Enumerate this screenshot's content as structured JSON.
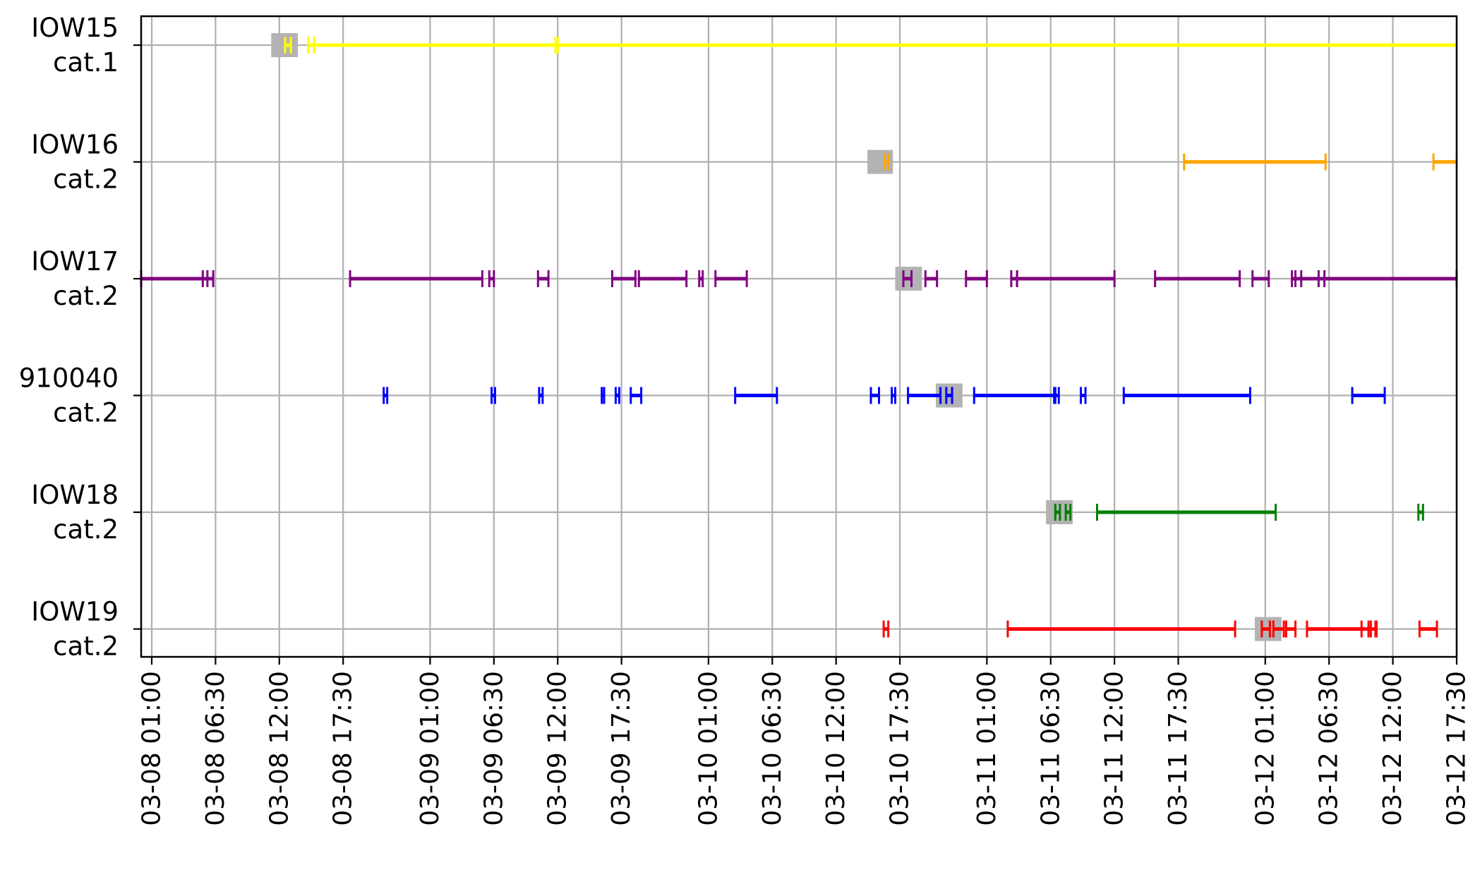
{
  "chart_data": {
    "type": "timeline",
    "title": "",
    "xlabel": "",
    "ylabel": "",
    "grid": true,
    "x_ticks": [
      "03-08 01:00",
      "03-08 06:30",
      "03-08 12:00",
      "03-08 17:30",
      "03-09 01:00",
      "03-09 06:30",
      "03-09 12:00",
      "03-09 17:30",
      "03-10 01:00",
      "03-10 06:30",
      "03-10 12:00",
      "03-10 17:30",
      "03-11 01:00",
      "03-11 06:30",
      "03-11 12:00",
      "03-11 17:30",
      "03-12 01:00",
      "03-12 06:30",
      "03-12 12:00",
      "03-12 17:30"
    ],
    "x_tick_hours": [
      1,
      6.5,
      12,
      17.5,
      25,
      30.5,
      36,
      41.5,
      49,
      54.5,
      60,
      65.5,
      73,
      78.5,
      84,
      89.5,
      97,
      102.5,
      108,
      113.5
    ],
    "xlim_hours": [
      0,
      113.5
    ],
    "rows": [
      {
        "name": "IOW15",
        "category": "cat.1",
        "color": "#ffff00",
        "segments": [
          [
            12.5,
            13.0
          ],
          [
            14.5,
            15.0
          ],
          [
            15.0,
            113.5
          ],
          [
            35.8,
            36.0
          ]
        ],
        "highlight": [
          11.3,
          13.6
        ]
      },
      {
        "name": "IOW16",
        "category": "cat.2",
        "color": "#ffa500",
        "segments": [
          [
            64.2,
            64.5
          ],
          [
            90.0,
            102.2
          ],
          [
            111.5,
            113.5
          ]
        ],
        "highlight": [
          62.7,
          64.9
        ]
      },
      {
        "name": "IOW17",
        "category": "cat.2",
        "color": "#800080",
        "segments": [
          [
            0.0,
            6.3
          ],
          [
            5.4,
            5.8
          ],
          [
            18.1,
            29.5
          ],
          [
            30.1,
            30.5
          ],
          [
            34.3,
            35.2
          ],
          [
            40.7,
            42.7
          ],
          [
            43.0,
            47.1
          ],
          [
            48.2,
            48.5
          ],
          [
            49.6,
            52.3
          ],
          [
            65.8,
            66.5
          ],
          [
            67.7,
            68.7
          ],
          [
            71.2,
            73.0
          ],
          [
            75.1,
            75.6
          ],
          [
            75.6,
            84.0
          ],
          [
            87.5,
            94.8
          ],
          [
            95.9,
            97.3
          ],
          [
            99.3,
            113.5
          ],
          [
            99.6,
            100.1
          ],
          [
            101.6,
            102.1
          ]
        ],
        "highlight": [
          65.1,
          67.4
        ]
      },
      {
        "name": "910040",
        "category": "cat.2",
        "color": "#0000ff",
        "segments": [
          [
            21.0,
            21.3
          ],
          [
            30.3,
            30.6
          ],
          [
            34.4,
            34.7
          ],
          [
            39.8,
            40.0
          ],
          [
            41.0,
            41.3
          ],
          [
            42.3,
            43.2
          ],
          [
            51.3,
            54.9
          ],
          [
            63.0,
            63.7
          ],
          [
            64.8,
            65.1
          ],
          [
            66.2,
            69.0
          ],
          [
            69.5,
            70.0
          ],
          [
            71.9,
            78.9
          ],
          [
            78.8,
            79.2
          ],
          [
            81.1,
            81.5
          ],
          [
            84.8,
            95.7
          ],
          [
            104.5,
            107.3
          ]
        ],
        "highlight": [
          68.6,
          70.9
        ]
      },
      {
        "name": "IOW18",
        "category": "cat.2",
        "color": "#008000",
        "segments": [
          [
            78.9,
            79.3
          ],
          [
            79.8,
            80.2
          ],
          [
            82.5,
            97.9
          ],
          [
            110.2,
            110.6
          ]
        ],
        "highlight": [
          78.1,
          80.4
        ]
      },
      {
        "name": "IOW19",
        "category": "cat.2",
        "color": "#ff0000",
        "segments": [
          [
            64.1,
            64.5
          ],
          [
            74.8,
            94.4
          ],
          [
            96.7,
            97.4
          ],
          [
            97.7,
            98.6
          ],
          [
            98.8,
            99.6
          ],
          [
            100.6,
            106.5
          ],
          [
            105.3,
            105.9
          ],
          [
            106.1,
            106.6
          ],
          [
            110.3,
            111.8
          ]
        ],
        "highlight": [
          96.1,
          98.4
        ]
      }
    ]
  }
}
